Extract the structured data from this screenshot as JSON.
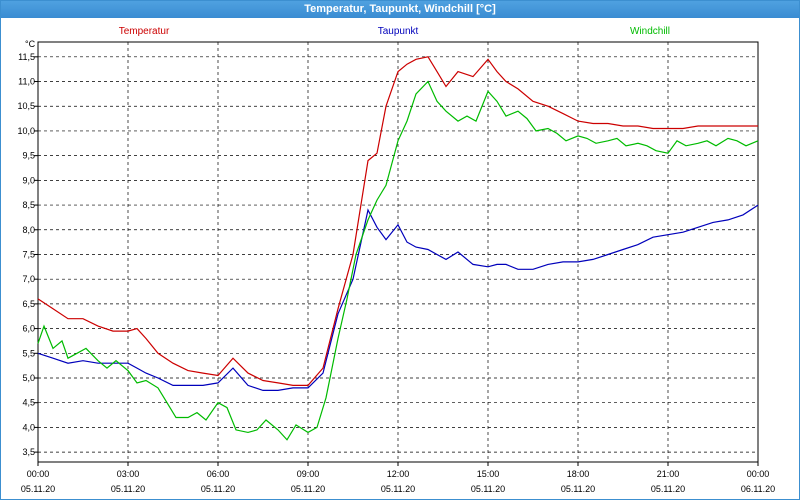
{
  "window": {
    "title": "Temperatur, Taupunkt, Windchill [°C]"
  },
  "chart_data": {
    "type": "line",
    "title": "Temperatur, Taupunkt, Windchill [°C]",
    "ylabel": "°C",
    "ylim": [
      3.3,
      11.8
    ],
    "yticks": [
      3.5,
      4.0,
      4.5,
      5.0,
      5.5,
      6.0,
      6.5,
      7.0,
      7.5,
      8.0,
      8.5,
      9.0,
      9.5,
      10.0,
      10.5,
      11.0,
      11.5
    ],
    "ytick_labels": [
      "3,5",
      "4,0",
      "4,5",
      "5,0",
      "5,5",
      "6,0",
      "6,5",
      "7,0",
      "7,5",
      "8,0",
      "8,5",
      "9,0",
      "9,5",
      "10,0",
      "10,5",
      "11,0",
      "11,5"
    ],
    "xlim": [
      0,
      24
    ],
    "xticks": [
      0,
      3,
      6,
      9,
      12,
      15,
      18,
      21,
      24
    ],
    "xtick_time": [
      "00:00",
      "03:00",
      "06:00",
      "09:00",
      "12:00",
      "15:00",
      "18:00",
      "21:00",
      "00:00"
    ],
    "xtick_date": [
      "05.11.20",
      "05.11.20",
      "05.11.20",
      "05.11.20",
      "05.11.20",
      "05.11.20",
      "05.11.20",
      "05.11.20",
      "06.11.20"
    ],
    "grid": true,
    "legend": "top",
    "series": [
      {
        "name": "Temperatur",
        "color": "#cc0000",
        "x": [
          0,
          0.5,
          1,
          1.5,
          2,
          2.5,
          3,
          3.3,
          3.6,
          4,
          4.5,
          5,
          5.5,
          6,
          6.5,
          7,
          7.5,
          8,
          8.5,
          9,
          9.5,
          10,
          10.5,
          11,
          11.3,
          11.6,
          12,
          12.3,
          12.6,
          13,
          13.3,
          13.6,
          14,
          14.5,
          15,
          15.3,
          15.6,
          16,
          16.5,
          17,
          17.5,
          18,
          18.5,
          19,
          19.5,
          20,
          20.5,
          21,
          21.5,
          22,
          22.5,
          23,
          23.5,
          24
        ],
        "values": [
          6.6,
          6.4,
          6.2,
          6.2,
          6.05,
          5.95,
          5.95,
          6.0,
          5.8,
          5.5,
          5.3,
          5.15,
          5.1,
          5.05,
          5.4,
          5.1,
          4.95,
          4.9,
          4.85,
          4.85,
          5.2,
          6.4,
          7.5,
          9.4,
          9.55,
          10.5,
          11.2,
          11.35,
          11.45,
          11.5,
          11.2,
          10.9,
          11.2,
          11.1,
          11.45,
          11.2,
          11.0,
          10.85,
          10.6,
          10.5,
          10.35,
          10.2,
          10.15,
          10.15,
          10.1,
          10.1,
          10.05,
          10.05,
          10.05,
          10.1,
          10.1,
          10.1,
          10.1,
          10.1
        ]
      },
      {
        "name": "Taupunkt",
        "color": "#0000bb",
        "x": [
          0,
          0.5,
          1,
          1.5,
          2,
          2.5,
          3,
          3.3,
          3.6,
          4,
          4.5,
          5,
          5.5,
          6,
          6.5,
          7,
          7.5,
          8,
          8.5,
          9,
          9.5,
          10,
          10.5,
          11,
          11.3,
          11.6,
          12,
          12.3,
          12.6,
          13,
          13.3,
          13.6,
          14,
          14.5,
          15,
          15.3,
          15.6,
          16,
          16.5,
          17,
          17.5,
          18,
          18.5,
          19,
          19.5,
          20,
          20.5,
          21,
          21.5,
          22,
          22.5,
          23,
          23.5,
          24
        ],
        "values": [
          5.5,
          5.4,
          5.3,
          5.35,
          5.3,
          5.3,
          5.3,
          5.2,
          5.1,
          5.0,
          4.85,
          4.85,
          4.85,
          4.9,
          5.2,
          4.85,
          4.75,
          4.75,
          4.8,
          4.8,
          5.1,
          6.3,
          7.0,
          8.4,
          8.05,
          7.8,
          8.1,
          7.75,
          7.65,
          7.6,
          7.5,
          7.4,
          7.55,
          7.3,
          7.25,
          7.3,
          7.3,
          7.2,
          7.2,
          7.3,
          7.35,
          7.35,
          7.4,
          7.5,
          7.6,
          7.7,
          7.85,
          7.9,
          7.95,
          8.05,
          8.15,
          8.2,
          8.3,
          8.5
        ]
      },
      {
        "name": "Windchill",
        "color": "#00bb00",
        "x": [
          0,
          0.2,
          0.5,
          0.8,
          1,
          1.3,
          1.6,
          2,
          2.3,
          2.6,
          3,
          3.3,
          3.6,
          4,
          4.3,
          4.6,
          5,
          5.3,
          5.6,
          6,
          6.3,
          6.6,
          7,
          7.3,
          7.6,
          8,
          8.3,
          8.6,
          9,
          9.3,
          9.6,
          10,
          10.3,
          10.6,
          11,
          11.3,
          11.6,
          12,
          12.3,
          12.6,
          13,
          13.3,
          13.6,
          14,
          14.3,
          14.6,
          15,
          15.3,
          15.6,
          16,
          16.3,
          16.6,
          17,
          17.3,
          17.6,
          18,
          18.3,
          18.6,
          19,
          19.3,
          19.6,
          20,
          20.3,
          20.6,
          21,
          21.3,
          21.6,
          22,
          22.3,
          22.6,
          23,
          23.3,
          23.6,
          24
        ],
        "values": [
          5.7,
          6.05,
          5.6,
          5.75,
          5.4,
          5.5,
          5.6,
          5.35,
          5.2,
          5.35,
          5.15,
          4.9,
          4.95,
          4.8,
          4.5,
          4.2,
          4.2,
          4.3,
          4.15,
          4.5,
          4.4,
          3.95,
          3.9,
          3.95,
          4.15,
          3.95,
          3.75,
          4.05,
          3.9,
          4.0,
          4.6,
          5.8,
          6.6,
          7.5,
          8.2,
          8.6,
          8.9,
          9.8,
          10.2,
          10.75,
          11.0,
          10.6,
          10.4,
          10.2,
          10.3,
          10.2,
          10.8,
          10.6,
          10.3,
          10.4,
          10.25,
          10.0,
          10.05,
          9.95,
          9.8,
          9.9,
          9.85,
          9.75,
          9.8,
          9.85,
          9.7,
          9.75,
          9.7,
          9.6,
          9.55,
          9.8,
          9.7,
          9.75,
          9.8,
          9.7,
          9.85,
          9.8,
          9.7,
          9.8
        ]
      }
    ]
  }
}
